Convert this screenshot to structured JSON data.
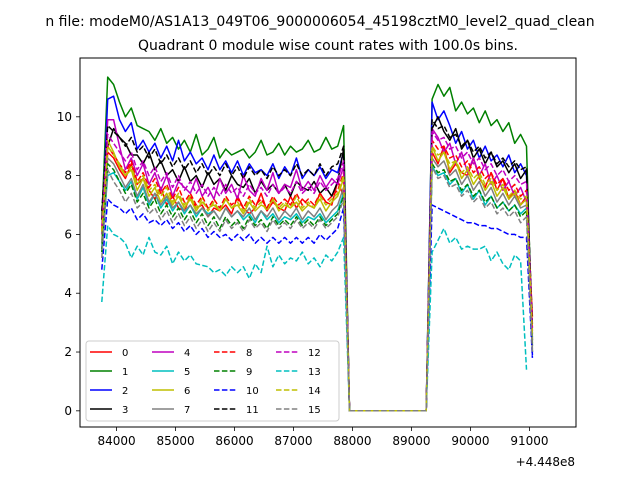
{
  "chart_data": {
    "type": "line",
    "suptitle": "n file: modeM0/AS1A13_049T06_9000006054_45198cztM0_level2_quad_clean",
    "title": "Quadrant 0 module wise count rates with 100.0s bins.",
    "xlabel": "",
    "ylabel": "",
    "x_offset_label": "+4.448e8",
    "xlim": [
      83380,
      91790
    ],
    "ylim": [
      -0.55,
      12.0
    ],
    "xticks": [
      84000,
      85000,
      86000,
      87000,
      88000,
      89000,
      90000,
      91000
    ],
    "yticks": [
      0,
      2,
      4,
      6,
      8,
      10
    ],
    "legend": "lower-left",
    "grid": false,
    "x_start": 83750,
    "x_step": 100,
    "series": [
      {
        "name": "0",
        "color": "#ff0000",
        "dash": "solid",
        "values": [
          5.5,
          8.8,
          8.6,
          8.2,
          7.9,
          8.4,
          7.7,
          7.9,
          7.5,
          7.2,
          7.6,
          7.0,
          7.3,
          6.9,
          6.8,
          7.3,
          6.9,
          7.0,
          6.6,
          6.9,
          6.8,
          7.0,
          6.7,
          7.3,
          6.9,
          6.7,
          6.9,
          7.4,
          6.8,
          7.1,
          6.9,
          6.8,
          7.3,
          6.9,
          7.2,
          7.0,
          6.9,
          7.4,
          7.1,
          7.0,
          7.8,
          7.3,
          0,
          0,
          0,
          0,
          0,
          0,
          0,
          0,
          0,
          0,
          0,
          0,
          0,
          0,
          8.8,
          8.4,
          9.0,
          8.1,
          8.4,
          8.1,
          8.0,
          8.6,
          7.9,
          7.6,
          8.1,
          7.5,
          7.9,
          7.2,
          7.5,
          7.0,
          7.3,
          3.2
        ]
      },
      {
        "name": "1",
        "color": "#008000",
        "dash": "solid",
        "values": [
          6.5,
          11.35,
          11.1,
          10.5,
          10.0,
          10.3,
          9.7,
          9.6,
          9.5,
          9.2,
          9.6,
          9.1,
          9.3,
          8.9,
          9.2,
          8.8,
          9.4,
          8.7,
          8.9,
          9.3,
          8.6,
          8.9,
          8.7,
          8.8,
          8.9,
          8.6,
          8.8,
          9.2,
          8.7,
          8.8,
          9.1,
          8.7,
          9.0,
          8.8,
          8.9,
          9.2,
          8.8,
          8.9,
          9.3,
          8.9,
          9.0,
          9.7,
          0,
          0,
          0,
          0,
          0,
          0,
          0,
          0,
          0,
          0,
          0,
          0,
          0,
          0,
          10.6,
          11.1,
          10.7,
          11.0,
          10.2,
          10.5,
          10.1,
          10.3,
          9.8,
          10.2,
          9.7,
          9.9,
          9.5,
          9.8,
          9.1,
          9.4,
          9.0,
          2.2
        ]
      },
      {
        "name": "2",
        "color": "#0000ff",
        "dash": "solid",
        "values": [
          6.0,
          10.6,
          10.7,
          9.9,
          9.5,
          9.8,
          8.9,
          9.2,
          8.8,
          9.1,
          8.6,
          9.0,
          8.5,
          9.2,
          8.5,
          8.8,
          8.4,
          8.6,
          8.2,
          8.7,
          8.2,
          8.5,
          8.1,
          8.5,
          8.0,
          8.4,
          8.1,
          8.2,
          8.0,
          8.4,
          7.9,
          8.3,
          8.0,
          8.6,
          7.9,
          8.2,
          8.0,
          8.3,
          7.9,
          8.2,
          8.1,
          8.8,
          0,
          0,
          0,
          0,
          0,
          0,
          0,
          0,
          0,
          0,
          0,
          0,
          0,
          0,
          10.5,
          9.9,
          10.2,
          9.7,
          9.1,
          9.5,
          8.9,
          9.2,
          8.6,
          9.0,
          8.5,
          8.7,
          8.3,
          8.7,
          8.1,
          8.4,
          8.0,
          1.9
        ]
      },
      {
        "name": "3",
        "color": "#000000",
        "dash": "solid",
        "values": [
          6.5,
          9.0,
          9.6,
          9.3,
          9.1,
          8.7,
          8.7,
          8.4,
          8.8,
          8.2,
          8.5,
          8.0,
          8.2,
          7.8,
          8.3,
          7.8,
          8.0,
          7.6,
          8.1,
          7.7,
          7.9,
          7.5,
          8.0,
          7.7,
          7.6,
          7.9,
          7.4,
          7.8,
          7.5,
          7.7,
          7.4,
          7.7,
          7.3,
          7.8,
          7.6,
          7.5,
          7.8,
          7.4,
          7.6,
          7.3,
          7.8,
          8.9,
          0,
          0,
          0,
          0,
          0,
          0,
          0,
          0,
          0,
          0,
          0,
          0,
          0,
          0,
          9.6,
          10.0,
          9.5,
          9.2,
          9.6,
          8.9,
          9.2,
          8.6,
          8.9,
          8.4,
          8.8,
          8.3,
          8.5,
          8.1,
          8.4,
          7.9,
          8.2,
          2.4
        ]
      },
      {
        "name": "4",
        "color": "#bf00bf",
        "dash": "solid",
        "values": [
          6.0,
          9.9,
          9.9,
          9.0,
          8.2,
          8.6,
          8.0,
          8.4,
          7.7,
          8.1,
          7.5,
          8.0,
          7.3,
          7.8,
          7.6,
          7.4,
          7.9,
          7.3,
          7.6,
          7.2,
          7.9,
          7.4,
          7.7,
          7.2,
          8.0,
          7.5,
          7.3,
          7.9,
          7.5,
          8.1,
          7.4,
          7.7,
          7.6,
          8.2,
          7.5,
          7.8,
          7.5,
          8.0,
          7.6,
          7.9,
          7.7,
          8.3,
          0,
          0,
          0,
          0,
          0,
          0,
          0,
          0,
          0,
          0,
          0,
          0,
          0,
          0,
          9.6,
          9.3,
          8.8,
          9.1,
          8.4,
          8.8,
          8.1,
          8.6,
          8.0,
          8.4,
          7.7,
          8.0,
          7.5,
          7.8,
          7.3,
          7.6,
          7.1,
          2.6
        ]
      },
      {
        "name": "5",
        "color": "#00bfbf",
        "dash": "solid",
        "values": [
          5.5,
          8.0,
          8.1,
          7.8,
          7.5,
          7.8,
          7.2,
          7.6,
          7.0,
          7.4,
          6.9,
          7.2,
          6.8,
          7.1,
          6.7,
          7.0,
          6.6,
          6.9,
          6.7,
          6.8,
          6.5,
          6.9,
          6.6,
          6.8,
          6.5,
          6.7,
          6.4,
          6.8,
          6.5,
          6.7,
          6.4,
          6.6,
          6.5,
          6.7,
          6.4,
          6.6,
          6.5,
          6.7,
          6.4,
          6.6,
          6.8,
          7.4,
          0,
          0,
          0,
          0,
          0,
          0,
          0,
          0,
          0,
          0,
          0,
          0,
          0,
          0,
          8.3,
          8.0,
          8.1,
          7.7,
          7.9,
          7.4,
          7.7,
          7.2,
          7.5,
          7.0,
          7.3,
          6.9,
          7.1,
          6.8,
          7.0,
          6.7,
          6.9,
          2.5
        ]
      },
      {
        "name": "6",
        "color": "#bfbf00",
        "dash": "solid",
        "values": [
          5.8,
          9.2,
          8.8,
          8.3,
          8.0,
          8.2,
          7.5,
          7.9,
          7.3,
          7.6,
          7.1,
          7.4,
          7.0,
          7.3,
          6.9,
          7.2,
          6.8,
          7.1,
          6.9,
          7.0,
          6.8,
          7.2,
          6.9,
          7.0,
          6.7,
          7.1,
          6.8,
          7.0,
          6.9,
          7.2,
          6.8,
          7.0,
          6.9,
          7.1,
          6.8,
          7.0,
          6.9,
          7.2,
          6.8,
          7.1,
          7.3,
          7.9,
          0,
          0,
          0,
          0,
          0,
          0,
          0,
          0,
          0,
          0,
          0,
          0,
          0,
          0,
          9.0,
          8.5,
          8.8,
          8.2,
          8.5,
          7.9,
          8.2,
          7.7,
          8.0,
          7.5,
          7.8,
          7.3,
          7.6,
          7.2,
          7.4,
          7.0,
          7.2,
          2.3
        ]
      },
      {
        "name": "7",
        "color": "#808080",
        "dash": "solid",
        "values": [
          5.7,
          8.6,
          8.4,
          8.0,
          7.6,
          7.9,
          7.3,
          7.7,
          7.1,
          7.4,
          7.0,
          7.3,
          6.9,
          7.1,
          6.8,
          7.0,
          6.7,
          6.9,
          6.6,
          6.8,
          6.5,
          6.9,
          6.6,
          6.8,
          6.6,
          6.9,
          6.5,
          6.8,
          6.6,
          6.9,
          6.5,
          6.8,
          6.6,
          6.9,
          6.5,
          6.8,
          6.6,
          6.9,
          6.5,
          6.8,
          7.0,
          7.6,
          0,
          0,
          0,
          0,
          0,
          0,
          0,
          0,
          0,
          0,
          0,
          0,
          0,
          0,
          8.6,
          8.3,
          8.5,
          8.0,
          8.2,
          7.7,
          8.0,
          7.5,
          7.8,
          7.3,
          7.6,
          7.1,
          7.4,
          7.0,
          7.3,
          6.9,
          7.0,
          2.1
        ]
      },
      {
        "name": "8",
        "color": "#ff0000",
        "dash": "dashed",
        "values": [
          6.2,
          9.0,
          8.7,
          8.4,
          8.1,
          8.5,
          7.8,
          8.1,
          7.6,
          7.9,
          7.4,
          7.7,
          7.2,
          7.6,
          7.1,
          7.4,
          7.0,
          7.3,
          6.9,
          7.2,
          6.9,
          7.3,
          7.0,
          7.2,
          6.9,
          7.3,
          7.0,
          7.2,
          6.9,
          7.3,
          7.0,
          7.2,
          7.0,
          7.4,
          7.0,
          7.2,
          7.0,
          7.4,
          7.1,
          7.3,
          7.5,
          8.1,
          0,
          0,
          0,
          0,
          0,
          0,
          0,
          0,
          0,
          0,
          0,
          0,
          0,
          0,
          9.2,
          8.9,
          9.0,
          8.6,
          8.7,
          8.3,
          8.5,
          8.1,
          8.3,
          7.9,
          8.1,
          7.7,
          7.9,
          7.5,
          7.7,
          7.3,
          7.5,
          2.8
        ]
      },
      {
        "name": "9",
        "color": "#008000",
        "dash": "dashed",
        "values": [
          5.4,
          8.4,
          8.2,
          7.8,
          7.4,
          7.7,
          7.1,
          7.4,
          6.9,
          7.2,
          6.7,
          7.0,
          6.6,
          6.9,
          6.5,
          6.8,
          6.4,
          6.7,
          6.3,
          6.6,
          6.2,
          6.6,
          6.3,
          6.5,
          6.2,
          6.6,
          6.3,
          6.5,
          6.2,
          6.6,
          6.3,
          6.5,
          6.3,
          6.6,
          6.3,
          6.5,
          6.3,
          6.6,
          6.3,
          6.5,
          6.7,
          7.3,
          0,
          0,
          0,
          0,
          0,
          0,
          0,
          0,
          0,
          0,
          0,
          0,
          0,
          0,
          8.4,
          8.1,
          8.2,
          7.8,
          7.9,
          7.5,
          7.7,
          7.3,
          7.5,
          7.1,
          7.3,
          6.9,
          7.1,
          6.8,
          7.0,
          6.6,
          6.8,
          2.0
        ]
      },
      {
        "name": "10",
        "color": "#0000ff",
        "dash": "dashed",
        "values": [
          4.8,
          7.2,
          7.0,
          6.9,
          6.7,
          6.9,
          6.5,
          6.7,
          6.4,
          6.5,
          6.3,
          6.5,
          6.2,
          6.4,
          6.1,
          6.3,
          6.0,
          6.2,
          5.9,
          6.1,
          5.9,
          6.0,
          5.8,
          6.0,
          5.8,
          6.0,
          5.7,
          5.9,
          5.7,
          5.9,
          5.7,
          5.9,
          5.7,
          5.9,
          5.7,
          5.9,
          5.7,
          6.0,
          5.8,
          6.0,
          6.2,
          6.9,
          0,
          0,
          0,
          0,
          0,
          0,
          0,
          0,
          0,
          0,
          0,
          0,
          0,
          0,
          7.0,
          6.9,
          6.8,
          6.7,
          6.6,
          6.5,
          6.4,
          6.4,
          6.3,
          6.3,
          6.2,
          6.2,
          6.1,
          6.0,
          6.0,
          5.9,
          5.9,
          1.8
        ]
      },
      {
        "name": "11",
        "color": "#000000",
        "dash": "dashed",
        "values": [
          6.8,
          9.7,
          9.5,
          9.3,
          9.0,
          9.3,
          8.8,
          9.0,
          8.6,
          8.9,
          8.4,
          8.7,
          8.3,
          8.6,
          8.2,
          8.5,
          8.1,
          8.4,
          8.0,
          8.3,
          8.0,
          8.4,
          8.0,
          8.3,
          7.9,
          8.3,
          8.0,
          8.2,
          7.9,
          8.3,
          8.0,
          8.2,
          8.0,
          8.4,
          8.0,
          8.2,
          8.0,
          8.4,
          8.0,
          8.3,
          8.4,
          9.0,
          0,
          0,
          0,
          0,
          0,
          0,
          0,
          0,
          0,
          0,
          0,
          0,
          0,
          0,
          9.9,
          9.6,
          9.7,
          9.3,
          9.4,
          9.0,
          9.2,
          8.8,
          9.0,
          8.6,
          8.8,
          8.4,
          8.6,
          8.3,
          8.5,
          8.2,
          8.3,
          2.9
        ]
      },
      {
        "name": "12",
        "color": "#bf00bf",
        "dash": "dashed",
        "values": [
          6.3,
          9.4,
          9.1,
          8.8,
          8.5,
          8.8,
          8.2,
          8.5,
          8.0,
          8.3,
          7.8,
          8.1,
          7.6,
          8.0,
          7.5,
          7.8,
          7.4,
          7.7,
          7.3,
          7.6,
          7.3,
          7.7,
          7.4,
          7.6,
          7.3,
          7.7,
          7.4,
          7.6,
          7.3,
          7.7,
          7.4,
          7.6,
          7.4,
          7.8,
          7.4,
          7.6,
          7.4,
          7.8,
          7.5,
          7.7,
          7.9,
          8.5,
          0,
          0,
          0,
          0,
          0,
          0,
          0,
          0,
          0,
          0,
          0,
          0,
          0,
          0,
          9.5,
          9.2,
          9.3,
          8.9,
          9.0,
          8.6,
          8.8,
          8.4,
          8.6,
          8.2,
          8.4,
          8.0,
          8.2,
          7.8,
          8.0,
          7.7,
          7.8,
          2.7
        ]
      },
      {
        "name": "13",
        "color": "#00bfbf",
        "dash": "dashed",
        "values": [
          3.7,
          6.3,
          6.0,
          5.9,
          5.7,
          5.2,
          5.6,
          5.3,
          5.9,
          5.4,
          5.3,
          5.6,
          5.0,
          5.4,
          5.1,
          5.3,
          5.0,
          4.95,
          4.9,
          4.7,
          4.8,
          4.6,
          4.9,
          4.7,
          4.9,
          4.5,
          5.0,
          4.7,
          5.6,
          4.9,
          5.3,
          5.0,
          5.2,
          5.1,
          5.4,
          5.0,
          5.2,
          4.9,
          5.3,
          5.1,
          5.4,
          5.9,
          0,
          0,
          0,
          0,
          0,
          0,
          0,
          0,
          0,
          0,
          0,
          0,
          0,
          0,
          5.4,
          5.8,
          6.2,
          5.7,
          5.9,
          5.5,
          5.6,
          5.5,
          5.5,
          5.6,
          5.1,
          5.4,
          5.0,
          4.8,
          5.3,
          5.1,
          1.4
        ]
      },
      {
        "name": "14",
        "color": "#bfbf00",
        "dash": "dashed",
        "values": [
          6.1,
          9.0,
          8.7,
          8.4,
          8.0,
          8.3,
          7.7,
          8.0,
          7.5,
          7.7,
          7.3,
          7.6,
          7.1,
          7.4,
          7.0,
          7.3,
          6.9,
          7.2,
          6.8,
          7.1,
          6.8,
          7.2,
          6.9,
          7.1,
          6.8,
          7.2,
          6.9,
          7.1,
          6.8,
          7.2,
          6.9,
          7.1,
          6.9,
          7.3,
          6.9,
          7.1,
          6.9,
          7.3,
          7.0,
          7.2,
          7.4,
          8.0,
          0,
          0,
          0,
          0,
          0,
          0,
          0,
          0,
          0,
          0,
          0,
          0,
          0,
          0,
          9.0,
          8.7,
          8.8,
          8.4,
          8.5,
          8.1,
          8.3,
          7.9,
          8.1,
          7.7,
          7.9,
          7.5,
          7.7,
          7.3,
          7.5,
          7.2,
          7.3,
          2.6
        ]
      },
      {
        "name": "15",
        "color": "#808080",
        "dash": "dashed",
        "values": [
          5.2,
          8.2,
          7.8,
          7.5,
          7.1,
          7.4,
          6.9,
          7.1,
          6.7,
          6.9,
          6.5,
          6.8,
          6.4,
          6.7,
          6.3,
          6.6,
          6.2,
          6.5,
          6.1,
          6.4,
          6.1,
          6.5,
          6.2,
          6.4,
          6.1,
          6.5,
          6.2,
          6.4,
          6.1,
          6.5,
          6.2,
          6.4,
          6.2,
          6.5,
          6.2,
          6.4,
          6.2,
          6.5,
          6.2,
          6.4,
          6.6,
          7.2,
          0,
          0,
          0,
          0,
          0,
          0,
          0,
          0,
          0,
          0,
          0,
          0,
          0,
          0,
          8.3,
          7.9,
          8.0,
          7.6,
          7.7,
          7.3,
          7.5,
          7.1,
          7.3,
          6.9,
          7.1,
          6.7,
          6.9,
          6.6,
          6.8,
          6.4,
          6.6,
          2.0
        ]
      }
    ]
  }
}
